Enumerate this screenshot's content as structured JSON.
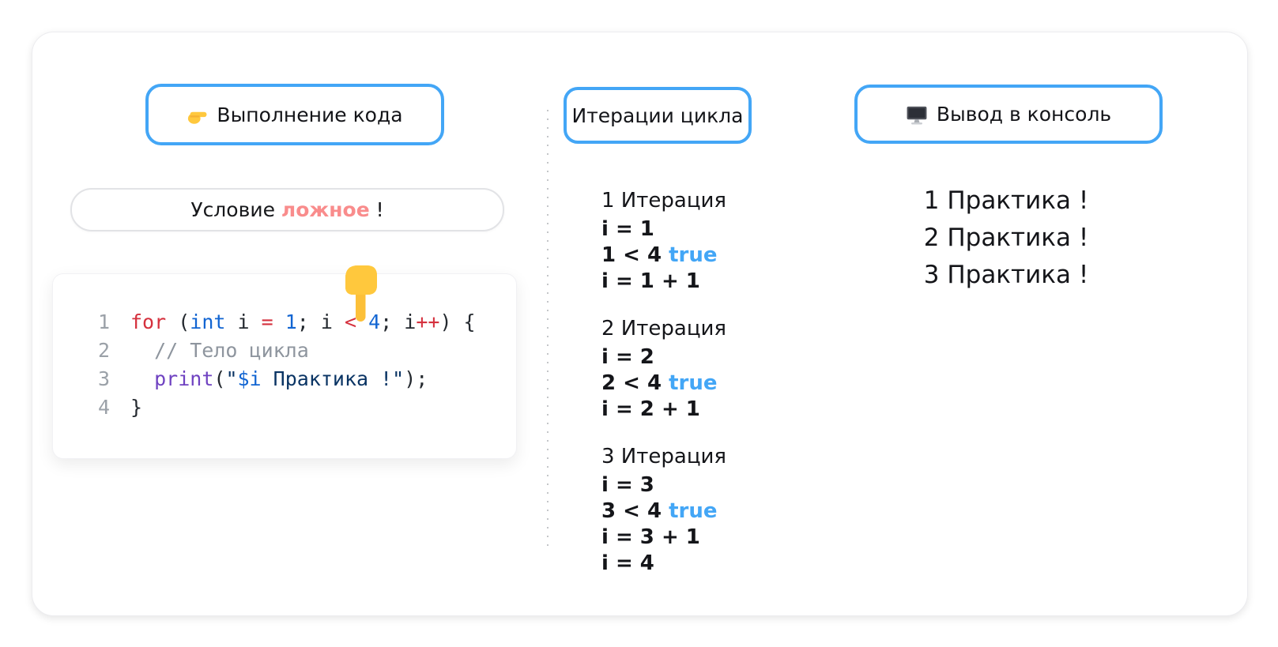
{
  "colors": {
    "accent-blue": "#43A6F6",
    "pink": "#F98C8C",
    "ink": "#24292F",
    "code-red": "#D5313E",
    "code-blue": "#1265D2",
    "code-purple": "#6F42C1",
    "code-string": "#0A3464",
    "code-comment": "#8E959E",
    "line-number": "#9BA1A8",
    "text": "#17181B",
    "dot": "#C4C6C9",
    "pill-border": "#E2E3E6",
    "card-border": "#ECECEF"
  },
  "badges": {
    "execution": {
      "label": "Выполнение кода",
      "icon": "pointing-right-hand"
    },
    "iterations": {
      "label": "Итерации цикла"
    },
    "console": {
      "label": "Вывод в консоль",
      "icon": "desktop-computer"
    }
  },
  "condition": {
    "prefix": "Условие ",
    "highlight": "ложное",
    "suffix": " !"
  },
  "pointer_icon": "pointing-down-hand",
  "code": {
    "lines": [
      {
        "number": "1",
        "tokens": [
          {
            "t": "for",
            "c": "red"
          },
          {
            "t": " (",
            "c": "ink"
          },
          {
            "t": "int",
            "c": "blue"
          },
          {
            "t": " i ",
            "c": "ink"
          },
          {
            "t": "=",
            "c": "red"
          },
          {
            "t": " ",
            "c": "ink"
          },
          {
            "t": "1",
            "c": "blue"
          },
          {
            "t": "; i ",
            "c": "ink"
          },
          {
            "t": "<",
            "c": "red"
          },
          {
            "t": " ",
            "c": "ink"
          },
          {
            "t": "4",
            "c": "blue"
          },
          {
            "t": "; i",
            "c": "ink"
          },
          {
            "t": "++",
            "c": "red"
          },
          {
            "t": ") {",
            "c": "ink"
          }
        ]
      },
      {
        "number": "2",
        "tokens": [
          {
            "t": "  // Тело цикла",
            "c": "comment"
          }
        ]
      },
      {
        "number": "3",
        "tokens": [
          {
            "t": "  ",
            "c": "ink"
          },
          {
            "t": "print",
            "c": "purple"
          },
          {
            "t": "(",
            "c": "ink"
          },
          {
            "t": "\"",
            "c": "string"
          },
          {
            "t": "$i",
            "c": "blue"
          },
          {
            "t": " Практика !\"",
            "c": "string"
          },
          {
            "t": ");",
            "c": "ink"
          }
        ]
      },
      {
        "number": "4",
        "tokens": [
          {
            "t": "}",
            "c": "ink"
          }
        ]
      }
    ]
  },
  "iterations": [
    {
      "title": "1 Итерация",
      "steps": [
        [
          {
            "t": "i = 1"
          }
        ],
        [
          {
            "t": "1 < 4 "
          },
          {
            "t": "true",
            "accent": true
          }
        ],
        [
          {
            "t": "i = 1 + 1"
          }
        ]
      ]
    },
    {
      "title": "2 Итерация",
      "steps": [
        [
          {
            "t": "i = 2"
          }
        ],
        [
          {
            "t": "2 < 4 "
          },
          {
            "t": "true",
            "accent": true
          }
        ],
        [
          {
            "t": "i = 2 + 1"
          }
        ]
      ]
    },
    {
      "title": "3 Итерация",
      "steps": [
        [
          {
            "t": "i = 3"
          }
        ],
        [
          {
            "t": "3 < 4 "
          },
          {
            "t": "true",
            "accent": true
          }
        ],
        [
          {
            "t": "i = 3 + 1"
          }
        ],
        [
          {
            "t": "i = 4"
          }
        ]
      ]
    }
  ],
  "console_output": [
    "1 Практика !",
    "2 Практика !",
    "3 Практика !"
  ]
}
